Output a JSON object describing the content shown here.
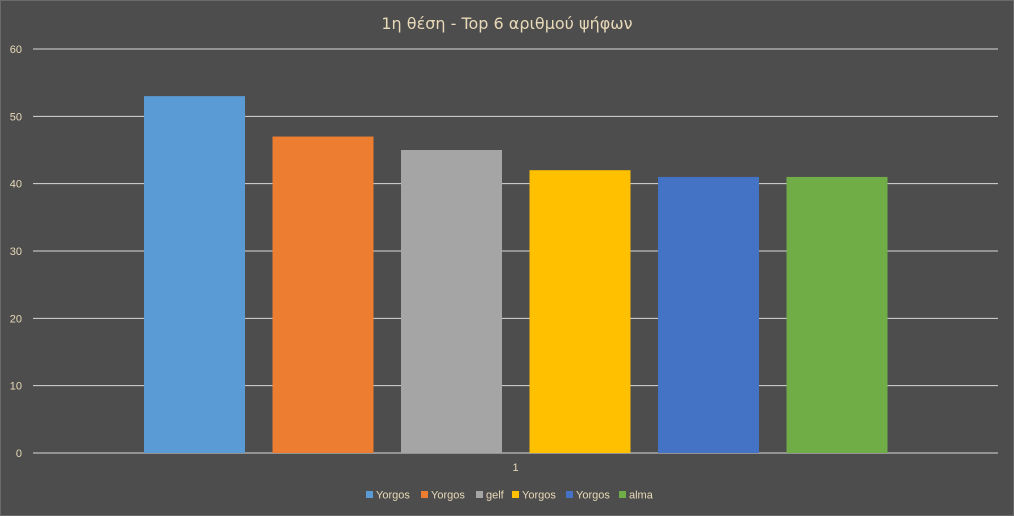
{
  "chart_data": {
    "type": "bar",
    "title": "1η θέση - Top 6 αριθμού ψήφων",
    "categories": [
      "1"
    ],
    "series": [
      {
        "name": "Yorgos",
        "values": [
          53
        ],
        "color": "#5b9bd5"
      },
      {
        "name": "Yorgos",
        "values": [
          47
        ],
        "color": "#ed7d31"
      },
      {
        "name": "gelf",
        "values": [
          45
        ],
        "color": "#a5a5a5"
      },
      {
        "name": "Yorgos",
        "values": [
          42
        ],
        "color": "#ffc000"
      },
      {
        "name": "Yorgos",
        "values": [
          41
        ],
        "color": "#4472c4"
      },
      {
        "name": "alma",
        "values": [
          41
        ],
        "color": "#70ad47"
      }
    ],
    "ylim": [
      0,
      60
    ],
    "yticks": [
      0,
      10,
      20,
      30,
      40,
      50,
      60
    ],
    "grid": true,
    "legend_position": "bottom",
    "colors": {
      "background": "#4d4d4d",
      "text": "#e8d9b8",
      "gridline": "#d9d9d9"
    }
  }
}
